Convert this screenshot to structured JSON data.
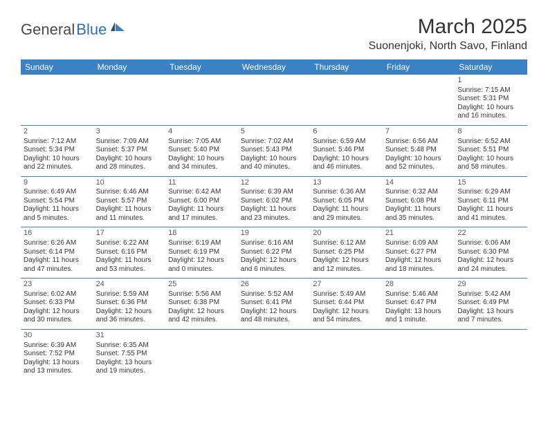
{
  "logo": {
    "text_dark": "General",
    "text_blue": "Blue"
  },
  "title": "March 2025",
  "location": "Suonenjoki, North Savo, Finland",
  "colors": {
    "header_bg": "#3b82c4",
    "header_text": "#ffffff",
    "border": "#3b82c4",
    "logo_dark": "#4a4a4a",
    "logo_blue": "#2d6fb5"
  },
  "day_headers": [
    "Sunday",
    "Monday",
    "Tuesday",
    "Wednesday",
    "Thursday",
    "Friday",
    "Saturday"
  ],
  "weeks": [
    [
      null,
      null,
      null,
      null,
      null,
      null,
      {
        "n": "1",
        "sr": "7:15 AM",
        "ss": "5:31 PM",
        "dl": "10 hours and 16 minutes."
      }
    ],
    [
      {
        "n": "2",
        "sr": "7:12 AM",
        "ss": "5:34 PM",
        "dl": "10 hours and 22 minutes."
      },
      {
        "n": "3",
        "sr": "7:09 AM",
        "ss": "5:37 PM",
        "dl": "10 hours and 28 minutes."
      },
      {
        "n": "4",
        "sr": "7:05 AM",
        "ss": "5:40 PM",
        "dl": "10 hours and 34 minutes."
      },
      {
        "n": "5",
        "sr": "7:02 AM",
        "ss": "5:43 PM",
        "dl": "10 hours and 40 minutes."
      },
      {
        "n": "6",
        "sr": "6:59 AM",
        "ss": "5:46 PM",
        "dl": "10 hours and 46 minutes."
      },
      {
        "n": "7",
        "sr": "6:56 AM",
        "ss": "5:48 PM",
        "dl": "10 hours and 52 minutes."
      },
      {
        "n": "8",
        "sr": "6:52 AM",
        "ss": "5:51 PM",
        "dl": "10 hours and 58 minutes."
      }
    ],
    [
      {
        "n": "9",
        "sr": "6:49 AM",
        "ss": "5:54 PM",
        "dl": "11 hours and 5 minutes."
      },
      {
        "n": "10",
        "sr": "6:46 AM",
        "ss": "5:57 PM",
        "dl": "11 hours and 11 minutes."
      },
      {
        "n": "11",
        "sr": "6:42 AM",
        "ss": "6:00 PM",
        "dl": "11 hours and 17 minutes."
      },
      {
        "n": "12",
        "sr": "6:39 AM",
        "ss": "6:02 PM",
        "dl": "11 hours and 23 minutes."
      },
      {
        "n": "13",
        "sr": "6:36 AM",
        "ss": "6:05 PM",
        "dl": "11 hours and 29 minutes."
      },
      {
        "n": "14",
        "sr": "6:32 AM",
        "ss": "6:08 PM",
        "dl": "11 hours and 35 minutes."
      },
      {
        "n": "15",
        "sr": "6:29 AM",
        "ss": "6:11 PM",
        "dl": "11 hours and 41 minutes."
      }
    ],
    [
      {
        "n": "16",
        "sr": "6:26 AM",
        "ss": "6:14 PM",
        "dl": "11 hours and 47 minutes."
      },
      {
        "n": "17",
        "sr": "6:22 AM",
        "ss": "6:16 PM",
        "dl": "11 hours and 53 minutes."
      },
      {
        "n": "18",
        "sr": "6:19 AM",
        "ss": "6:19 PM",
        "dl": "12 hours and 0 minutes."
      },
      {
        "n": "19",
        "sr": "6:16 AM",
        "ss": "6:22 PM",
        "dl": "12 hours and 6 minutes."
      },
      {
        "n": "20",
        "sr": "6:12 AM",
        "ss": "6:25 PM",
        "dl": "12 hours and 12 minutes."
      },
      {
        "n": "21",
        "sr": "6:09 AM",
        "ss": "6:27 PM",
        "dl": "12 hours and 18 minutes."
      },
      {
        "n": "22",
        "sr": "6:06 AM",
        "ss": "6:30 PM",
        "dl": "12 hours and 24 minutes."
      }
    ],
    [
      {
        "n": "23",
        "sr": "6:02 AM",
        "ss": "6:33 PM",
        "dl": "12 hours and 30 minutes."
      },
      {
        "n": "24",
        "sr": "5:59 AM",
        "ss": "6:36 PM",
        "dl": "12 hours and 36 minutes."
      },
      {
        "n": "25",
        "sr": "5:56 AM",
        "ss": "6:38 PM",
        "dl": "12 hours and 42 minutes."
      },
      {
        "n": "26",
        "sr": "5:52 AM",
        "ss": "6:41 PM",
        "dl": "12 hours and 48 minutes."
      },
      {
        "n": "27",
        "sr": "5:49 AM",
        "ss": "6:44 PM",
        "dl": "12 hours and 54 minutes."
      },
      {
        "n": "28",
        "sr": "5:46 AM",
        "ss": "6:47 PM",
        "dl": "13 hours and 1 minute."
      },
      {
        "n": "29",
        "sr": "5:42 AM",
        "ss": "6:49 PM",
        "dl": "13 hours and 7 minutes."
      }
    ],
    [
      {
        "n": "30",
        "sr": "6:39 AM",
        "ss": "7:52 PM",
        "dl": "13 hours and 13 minutes."
      },
      {
        "n": "31",
        "sr": "6:35 AM",
        "ss": "7:55 PM",
        "dl": "13 hours and 19 minutes."
      },
      null,
      null,
      null,
      null,
      null
    ]
  ],
  "labels": {
    "sunrise": "Sunrise: ",
    "sunset": "Sunset: ",
    "daylight": "Daylight: "
  }
}
